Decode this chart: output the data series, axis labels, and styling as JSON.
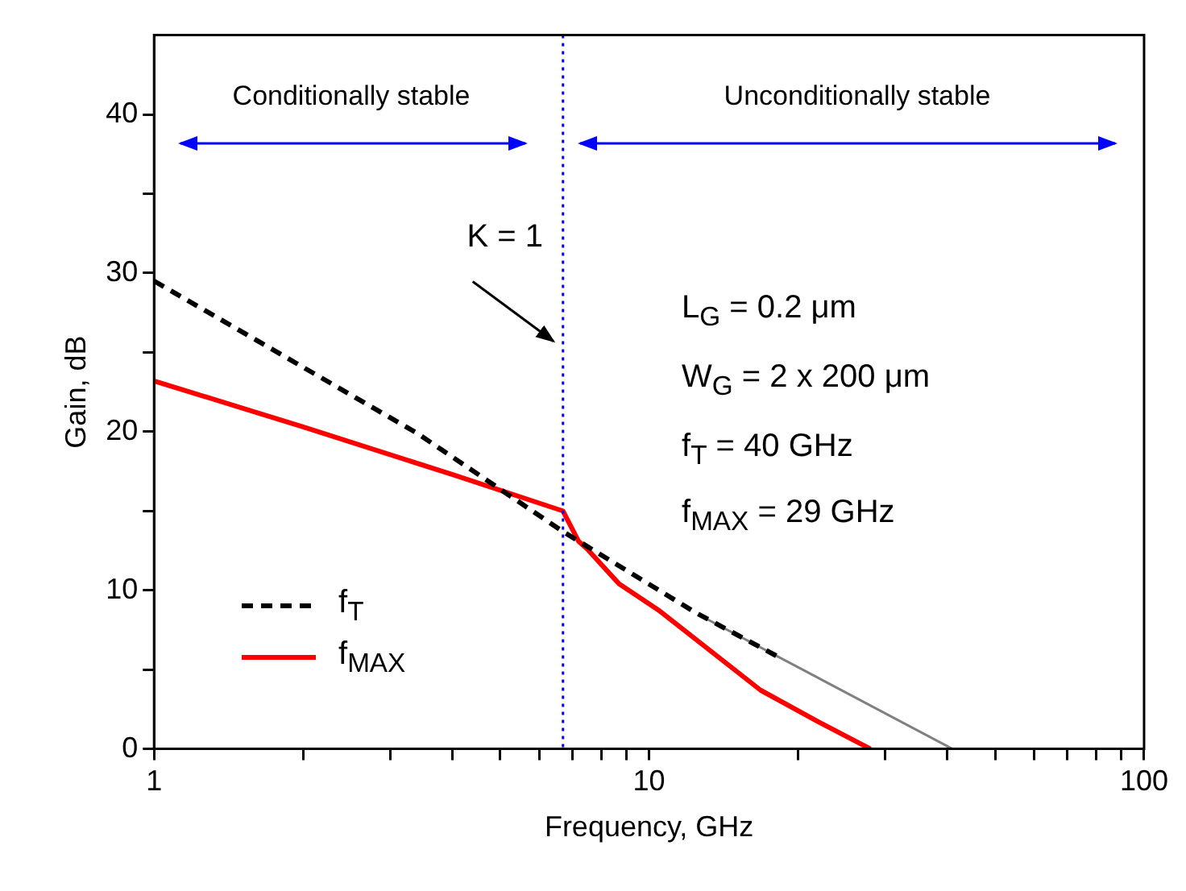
{
  "chart_data": {
    "type": "line",
    "xlabel": "Frequency, GHz",
    "ylabel": "Gain, dB",
    "log": "x",
    "xlim": [
      1,
      100
    ],
    "ylim": [
      0,
      45
    ],
    "xticks": [
      1,
      {
        "value": 2,
        "label": null
      },
      {
        "value": 3,
        "label": null
      },
      {
        "value": 4,
        "label": null
      },
      {
        "value": 5,
        "label": null
      },
      {
        "value": 6,
        "label": null
      },
      {
        "value": 7,
        "label": null
      },
      {
        "value": 8,
        "label": null
      },
      {
        "value": 9,
        "label": null
      },
      10,
      {
        "value": 20,
        "label": null
      },
      {
        "value": 30,
        "label": null
      },
      {
        "value": 40,
        "label": null
      },
      {
        "value": 50,
        "label": null
      },
      {
        "value": 60,
        "label": null
      },
      {
        "value": 70,
        "label": null
      },
      {
        "value": 80,
        "label": null
      },
      {
        "value": 90,
        "label": null
      },
      100
    ],
    "yticks": [
      0,
      {
        "value": 5,
        "label": null
      },
      10,
      {
        "value": 15,
        "label": null
      },
      20,
      {
        "value": 25,
        "label": null
      },
      30,
      {
        "value": 35,
        "label": null
      },
      40
    ],
    "grid": false,
    "legend": "bottom left",
    "marker": "none",
    "series": [
      {
        "name": "f$_{T}$",
        "color": "#000000",
        "line_style": "dashed",
        "x": [
          1,
          3.4,
          6.7,
          12.4,
          18.5
        ],
        "values": [
          29.5,
          19.9,
          13.7,
          8.6,
          5.7
        ]
      },
      {
        "name": "f$_{MAX}$",
        "color": "#ff0000",
        "line_style": "solid",
        "x": [
          1,
          2,
          4,
          6.7,
          7.2,
          7.5,
          8.7,
          10.5,
          16.8,
          22,
          28
        ],
        "values": [
          23.2,
          20.3,
          17.3,
          15.0,
          13.1,
          12.6,
          10.4,
          8.7,
          3.7,
          1.7,
          0
        ]
      },
      {
        "color": "#808080",
        "line_style": "solid",
        "x": [
          12.7,
          41
        ],
        "values": [
          8.4,
          0
        ]
      }
    ],
    "ref_lines": [
      {
        "axis": "x",
        "value": 6.7,
        "color": "#0000ff",
        "line_style": "dotted"
      }
    ],
    "annotations": [
      "Conditionally stable",
      "Unconditionally stable",
      {
        "text": "K = 1",
        "x": 6.7,
        "y": 25.5
      },
      "L$_{G}$ = 0.2 μm",
      "W$_{G}$ = 2 x 200 μm",
      "f$_{T}$ = 40 GHz",
      "f$_{MAX}$ = 29 GHz"
    ]
  }
}
